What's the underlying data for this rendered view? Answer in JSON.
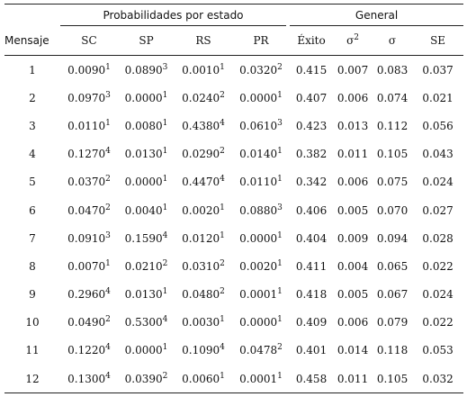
{
  "table": {
    "groups": [
      "Probabilidades por estado",
      "General"
    ],
    "columns": [
      "Mensaje",
      "SC",
      "SP",
      "RS",
      "PR",
      "Éxito",
      {
        "text": "σ",
        "sup": "2"
      },
      "σ",
      "SE"
    ],
    "rows": [
      {
        "id": "1",
        "prob": [
          [
            "0.0090",
            "1"
          ],
          [
            "0.0890",
            "3"
          ],
          [
            "0.0010",
            "1"
          ],
          [
            "0.0320",
            "2"
          ]
        ],
        "general": [
          "0.415",
          "0.007",
          "0.083",
          "0.037"
        ]
      },
      {
        "id": "2",
        "prob": [
          [
            "0.0970",
            "3"
          ],
          [
            "0.0000",
            "1"
          ],
          [
            "0.0240",
            "2"
          ],
          [
            "0.0000",
            "1"
          ]
        ],
        "general": [
          "0.407",
          "0.006",
          "0.074",
          "0.021"
        ]
      },
      {
        "id": "3",
        "prob": [
          [
            "0.0110",
            "1"
          ],
          [
            "0.0080",
            "1"
          ],
          [
            "0.4380",
            "4"
          ],
          [
            "0.0610",
            "3"
          ]
        ],
        "general": [
          "0.423",
          "0.013",
          "0.112",
          "0.056"
        ]
      },
      {
        "id": "4",
        "prob": [
          [
            "0.1270",
            "4"
          ],
          [
            "0.0130",
            "1"
          ],
          [
            "0.0290",
            "2"
          ],
          [
            "0.0140",
            "1"
          ]
        ],
        "general": [
          "0.382",
          "0.011",
          "0.105",
          "0.043"
        ]
      },
      {
        "id": "5",
        "prob": [
          [
            "0.0370",
            "2"
          ],
          [
            "0.0000",
            "1"
          ],
          [
            "0.4470",
            "4"
          ],
          [
            "0.0110",
            "1"
          ]
        ],
        "general": [
          "0.342",
          "0.006",
          "0.075",
          "0.024"
        ]
      },
      {
        "id": "6",
        "prob": [
          [
            "0.0470",
            "2"
          ],
          [
            "0.0040",
            "1"
          ],
          [
            "0.0020",
            "1"
          ],
          [
            "0.0880",
            "3"
          ]
        ],
        "general": [
          "0.406",
          "0.005",
          "0.070",
          "0.027"
        ]
      },
      {
        "id": "7",
        "prob": [
          [
            "0.0910",
            "3"
          ],
          [
            "0.1590",
            "4"
          ],
          [
            "0.0120",
            "1"
          ],
          [
            "0.0000",
            "1"
          ]
        ],
        "general": [
          "0.404",
          "0.009",
          "0.094",
          "0.028"
        ]
      },
      {
        "id": "8",
        "prob": [
          [
            "0.0070",
            "1"
          ],
          [
            "0.0210",
            "2"
          ],
          [
            "0.0310",
            "2"
          ],
          [
            "0.0020",
            "1"
          ]
        ],
        "general": [
          "0.411",
          "0.004",
          "0.065",
          "0.022"
        ]
      },
      {
        "id": "9",
        "prob": [
          [
            "0.2960",
            "4"
          ],
          [
            "0.0130",
            "1"
          ],
          [
            "0.0480",
            "2"
          ],
          [
            "0.0001",
            "1"
          ]
        ],
        "general": [
          "0.418",
          "0.005",
          "0.067",
          "0.024"
        ]
      },
      {
        "id": "10",
        "prob": [
          [
            "0.0490",
            "2"
          ],
          [
            "0.5300",
            "4"
          ],
          [
            "0.0030",
            "1"
          ],
          [
            "0.0000",
            "1"
          ]
        ],
        "general": [
          "0.409",
          "0.006",
          "0.079",
          "0.022"
        ]
      },
      {
        "id": "11",
        "prob": [
          [
            "0.1220",
            "4"
          ],
          [
            "0.0000",
            "1"
          ],
          [
            "0.1090",
            "4"
          ],
          [
            "0.0478",
            "2"
          ]
        ],
        "general": [
          "0.401",
          "0.014",
          "0.118",
          "0.053"
        ]
      },
      {
        "id": "12",
        "prob": [
          [
            "0.1300",
            "4"
          ],
          [
            "0.0390",
            "2"
          ],
          [
            "0.0060",
            "1"
          ],
          [
            "0.0001",
            "1"
          ]
        ],
        "general": [
          "0.458",
          "0.011",
          "0.105",
          "0.032"
        ]
      }
    ]
  }
}
